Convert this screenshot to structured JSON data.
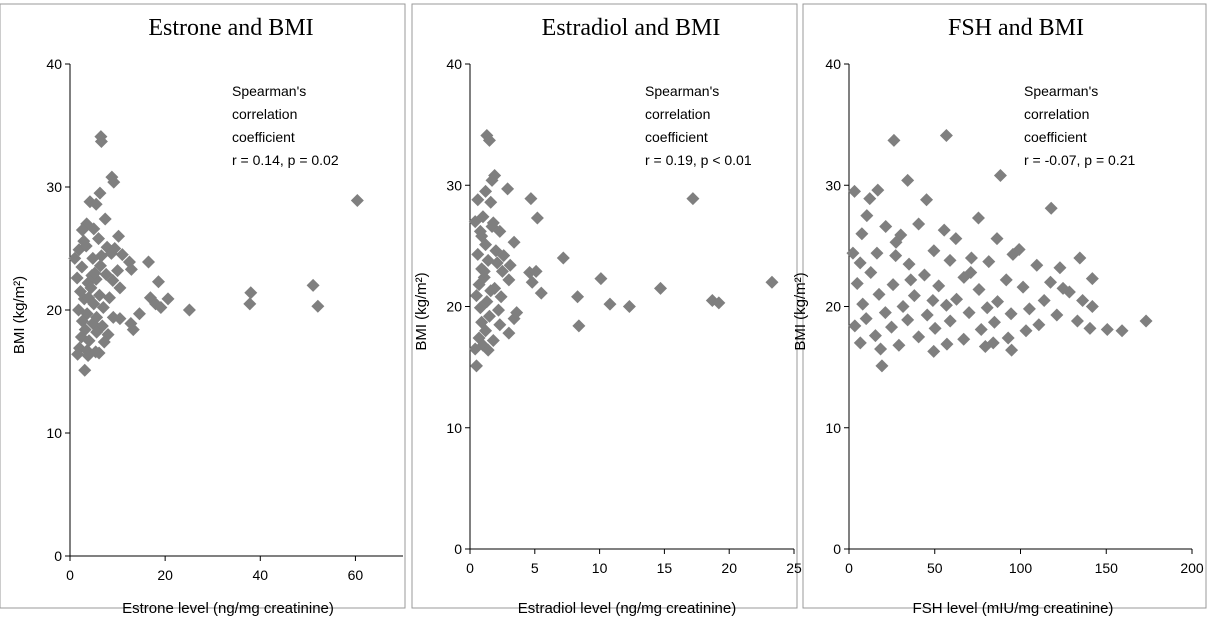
{
  "chart_data": [
    {
      "type": "scatter",
      "title": "Estrone and BMI",
      "xlabel": "Estrone level (ng/mg creatinine)",
      "ylabel": "BMI (kg/m²)",
      "xlim": [
        0,
        70
      ],
      "ylim": [
        0,
        40
      ],
      "xticks": [
        "0",
        "20",
        "40",
        "60"
      ],
      "yticks": [
        "0",
        "10",
        "20",
        "30",
        "40"
      ],
      "annotation": [
        "Spearman's",
        "correlation",
        "coefficient",
        "r = 0.14, p = 0.02"
      ],
      "marker_color": "#7f7f7f",
      "points": [
        [
          6.5,
          34.1
        ],
        [
          6.6,
          33.7
        ],
        [
          8.8,
          30.8
        ],
        [
          9.2,
          30.4
        ],
        [
          6.3,
          29.5
        ],
        [
          4.2,
          28.8
        ],
        [
          5.5,
          28.6
        ],
        [
          7.4,
          27.4
        ],
        [
          3.5,
          27.0
        ],
        [
          2.6,
          26.5
        ],
        [
          5.0,
          26.6
        ],
        [
          6.0,
          25.8
        ],
        [
          10.2,
          26.0
        ],
        [
          9.4,
          25.0
        ],
        [
          1.9,
          24.9
        ],
        [
          3.4,
          25.2
        ],
        [
          7.8,
          25.1
        ],
        [
          8.7,
          24.6
        ],
        [
          11.0,
          24.5
        ],
        [
          1.0,
          24.2
        ],
        [
          12.5,
          23.9
        ],
        [
          12.9,
          23.3
        ],
        [
          16.5,
          23.9
        ],
        [
          10.0,
          23.2
        ],
        [
          2.5,
          23.5
        ],
        [
          4.8,
          24.2
        ],
        [
          6.4,
          23.6
        ],
        [
          7.6,
          22.9
        ],
        [
          9.0,
          22.4
        ],
        [
          1.5,
          22.6
        ],
        [
          3.8,
          22.2
        ],
        [
          5.5,
          22.5
        ],
        [
          10.5,
          21.8
        ],
        [
          18.6,
          22.3
        ],
        [
          2.2,
          21.5
        ],
        [
          4.4,
          21.8
        ],
        [
          6.2,
          21.2
        ],
        [
          8.3,
          21.0
        ],
        [
          16.9,
          21.0
        ],
        [
          20.6,
          20.9
        ],
        [
          3.0,
          20.9
        ],
        [
          5.0,
          20.5
        ],
        [
          7.0,
          20.2
        ],
        [
          18.0,
          20.5
        ],
        [
          19.1,
          20.2
        ],
        [
          25.1,
          20.0
        ],
        [
          1.8,
          20.0
        ],
        [
          3.6,
          19.7
        ],
        [
          5.6,
          19.4
        ],
        [
          9.1,
          19.4
        ],
        [
          10.5,
          19.3
        ],
        [
          14.6,
          19.7
        ],
        [
          2.6,
          19.1
        ],
        [
          4.8,
          18.9
        ],
        [
          6.8,
          18.7
        ],
        [
          12.8,
          18.9
        ],
        [
          13.3,
          18.4
        ],
        [
          3.2,
          18.4
        ],
        [
          5.6,
          18.2
        ],
        [
          8.0,
          18.0
        ],
        [
          2.4,
          17.8
        ],
        [
          4.0,
          17.5
        ],
        [
          7.2,
          17.4
        ],
        [
          2.0,
          16.9
        ],
        [
          3.6,
          16.7
        ],
        [
          5.4,
          16.6
        ],
        [
          1.6,
          16.4
        ],
        [
          3.8,
          16.3
        ],
        [
          6.1,
          16.5
        ],
        [
          3.1,
          15.1
        ],
        [
          4.6,
          22.8
        ],
        [
          5.2,
          23.0
        ],
        [
          3.9,
          21.0
        ],
        [
          6.6,
          24.4
        ],
        [
          2.9,
          25.6
        ],
        [
          60.4,
          28.9
        ],
        [
          38.0,
          21.4
        ],
        [
          37.8,
          20.5
        ],
        [
          51.1,
          22.0
        ],
        [
          52.1,
          20.3
        ]
      ]
    },
    {
      "type": "scatter",
      "title": "Estradiol and BMI",
      "xlabel": "Estradiol level (ng/mg creatinine)",
      "ylabel": "BMI (kg/m²)",
      "xlim": [
        0,
        25
      ],
      "ylim": [
        0,
        40
      ],
      "xticks": [
        "0",
        "5",
        "10",
        "15",
        "20",
        "25"
      ],
      "yticks": [
        "0",
        "10",
        "20",
        "30",
        "40"
      ],
      "annotation": [
        "Spearman's",
        "correlation",
        "coefficient",
        "r = 0.19, p < 0.01"
      ],
      "marker_color": "#7f7f7f",
      "points": [
        [
          1.3,
          34.1
        ],
        [
          1.5,
          33.7
        ],
        [
          1.9,
          30.8
        ],
        [
          1.7,
          30.4
        ],
        [
          1.2,
          29.5
        ],
        [
          0.6,
          28.8
        ],
        [
          1.6,
          28.6
        ],
        [
          4.7,
          28.9
        ],
        [
          2.9,
          29.7
        ],
        [
          1.0,
          27.4
        ],
        [
          0.4,
          27.0
        ],
        [
          5.2,
          27.3
        ],
        [
          1.7,
          26.6
        ],
        [
          0.8,
          26.2
        ],
        [
          2.3,
          26.2
        ],
        [
          3.4,
          25.3
        ],
        [
          1.2,
          25.1
        ],
        [
          2.0,
          24.6
        ],
        [
          0.6,
          24.3
        ],
        [
          2.6,
          24.2
        ],
        [
          7.2,
          24.0
        ],
        [
          1.4,
          23.8
        ],
        [
          3.1,
          23.4
        ],
        [
          0.9,
          23.1
        ],
        [
          2.5,
          22.9
        ],
        [
          4.6,
          22.8
        ],
        [
          5.1,
          22.9
        ],
        [
          10.1,
          22.3
        ],
        [
          1.1,
          22.4
        ],
        [
          3.0,
          22.2
        ],
        [
          4.8,
          22.0
        ],
        [
          0.7,
          21.8
        ],
        [
          1.9,
          21.5
        ],
        [
          14.7,
          21.5
        ],
        [
          5.5,
          21.1
        ],
        [
          0.5,
          20.9
        ],
        [
          2.4,
          20.8
        ],
        [
          8.3,
          20.8
        ],
        [
          1.3,
          20.4
        ],
        [
          10.8,
          20.2
        ],
        [
          18.7,
          20.5
        ],
        [
          19.2,
          20.3
        ],
        [
          12.3,
          20.0
        ],
        [
          0.8,
          19.9
        ],
        [
          2.2,
          19.7
        ],
        [
          3.6,
          19.5
        ],
        [
          1.5,
          19.2
        ],
        [
          3.4,
          19.0
        ],
        [
          0.9,
          18.7
        ],
        [
          2.3,
          18.5
        ],
        [
          8.4,
          18.4
        ],
        [
          1.2,
          18.0
        ],
        [
          3.0,
          17.8
        ],
        [
          0.7,
          17.4
        ],
        [
          1.8,
          17.2
        ],
        [
          1.0,
          16.8
        ],
        [
          0.4,
          16.5
        ],
        [
          1.4,
          16.4
        ],
        [
          0.5,
          15.1
        ],
        [
          1.6,
          21.3
        ],
        [
          1.1,
          22.9
        ],
        [
          2.1,
          23.6
        ],
        [
          0.9,
          25.8
        ],
        [
          1.8,
          26.9
        ],
        [
          17.2,
          28.9
        ],
        [
          23.3,
          22.0
        ]
      ]
    },
    {
      "type": "scatter",
      "title": "FSH and BMI",
      "xlabel": "FSH level (mIU/mg creatinine)",
      "ylabel": "BMI (kg/m²)",
      "xlim": [
        0,
        200
      ],
      "ylim": [
        0,
        40
      ],
      "xticks": [
        "0",
        "50",
        "100",
        "150",
        "200"
      ],
      "yticks": [
        "0",
        "10",
        "20",
        "30",
        "40"
      ],
      "annotation": [
        "Spearman's",
        "correlation",
        "coefficient",
        "r = -0.07, p = 0.21"
      ],
      "marker_color": "#7f7f7f",
      "points": [
        [
          56.8,
          34.1
        ],
        [
          26.2,
          33.7
        ],
        [
          88.3,
          30.8
        ],
        [
          34.2,
          30.4
        ],
        [
          3.2,
          29.5
        ],
        [
          16.8,
          29.6
        ],
        [
          12.1,
          28.9
        ],
        [
          45.2,
          28.8
        ],
        [
          117.9,
          28.1
        ],
        [
          10.4,
          27.5
        ],
        [
          75.5,
          27.3
        ],
        [
          21.4,
          26.6
        ],
        [
          40.6,
          26.8
        ],
        [
          55.5,
          26.3
        ],
        [
          7.5,
          26.0
        ],
        [
          30.2,
          25.9
        ],
        [
          62.3,
          25.6
        ],
        [
          86.3,
          25.6
        ],
        [
          99.2,
          24.7
        ],
        [
          2.3,
          24.4
        ],
        [
          16.3,
          24.4
        ],
        [
          27.2,
          24.2
        ],
        [
          49.5,
          24.6
        ],
        [
          71.4,
          24.0
        ],
        [
          95.6,
          24.3
        ],
        [
          134.6,
          24.0
        ],
        [
          6.5,
          23.6
        ],
        [
          35.0,
          23.5
        ],
        [
          58.9,
          23.8
        ],
        [
          81.5,
          23.7
        ],
        [
          109.5,
          23.4
        ],
        [
          123.0,
          23.2
        ],
        [
          12.7,
          22.8
        ],
        [
          44.0,
          22.6
        ],
        [
          67.0,
          22.4
        ],
        [
          91.7,
          22.2
        ],
        [
          117.5,
          22.0
        ],
        [
          141.9,
          22.3
        ],
        [
          4.8,
          21.9
        ],
        [
          25.7,
          21.8
        ],
        [
          52.3,
          21.7
        ],
        [
          75.8,
          21.4
        ],
        [
          101.5,
          21.6
        ],
        [
          128.5,
          21.2
        ],
        [
          17.5,
          21.0
        ],
        [
          38.1,
          20.9
        ],
        [
          62.7,
          20.6
        ],
        [
          86.6,
          20.4
        ],
        [
          113.8,
          20.5
        ],
        [
          136.2,
          20.5
        ],
        [
          8.0,
          20.2
        ],
        [
          31.5,
          20.0
        ],
        [
          56.8,
          20.1
        ],
        [
          80.6,
          19.9
        ],
        [
          105.2,
          19.8
        ],
        [
          141.9,
          20.0
        ],
        [
          21.2,
          19.5
        ],
        [
          45.6,
          19.3
        ],
        [
          70.0,
          19.5
        ],
        [
          94.5,
          19.4
        ],
        [
          121.2,
          19.3
        ],
        [
          10.0,
          19.0
        ],
        [
          34.2,
          18.9
        ],
        [
          59.0,
          18.8
        ],
        [
          84.8,
          18.7
        ],
        [
          110.7,
          18.5
        ],
        [
          133.2,
          18.8
        ],
        [
          150.6,
          18.1
        ],
        [
          159.2,
          18.0
        ],
        [
          173.2,
          18.8
        ],
        [
          3.4,
          18.4
        ],
        [
          24.8,
          18.3
        ],
        [
          50.2,
          18.2
        ],
        [
          77.1,
          18.1
        ],
        [
          103.2,
          18.0
        ],
        [
          140.5,
          18.2
        ],
        [
          15.4,
          17.6
        ],
        [
          40.6,
          17.5
        ],
        [
          66.9,
          17.3
        ],
        [
          92.8,
          17.4
        ],
        [
          6.6,
          17.0
        ],
        [
          29.1,
          16.8
        ],
        [
          57.1,
          16.9
        ],
        [
          84.1,
          17.0
        ],
        [
          18.4,
          16.5
        ],
        [
          49.4,
          16.3
        ],
        [
          79.5,
          16.7
        ],
        [
          94.8,
          16.4
        ],
        [
          19.2,
          15.1
        ],
        [
          36.0,
          22.2
        ],
        [
          71.0,
          22.8
        ],
        [
          124.8,
          21.5
        ],
        [
          27.4,
          25.3
        ],
        [
          48.9,
          20.5
        ]
      ]
    }
  ]
}
